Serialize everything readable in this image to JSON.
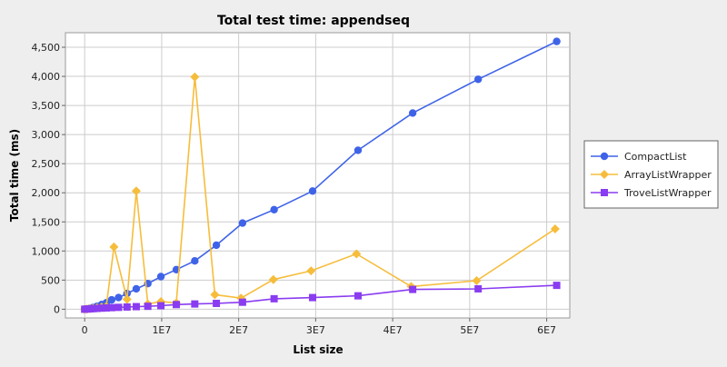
{
  "chart_data": {
    "type": "line",
    "title": "Total test time: appendseq",
    "xlabel": "List size",
    "ylabel": "Total time (ms)",
    "xlim": [
      -2500000,
      63000000
    ],
    "ylim": [
      -150,
      4750
    ],
    "x_ticks": [
      0,
      10000000,
      20000000,
      30000000,
      40000000,
      50000000,
      60000000
    ],
    "x_tick_labels": [
      "0",
      "1E7",
      "2E7",
      "3E7",
      "4E7",
      "5E7",
      "6E7"
    ],
    "y_ticks": [
      0,
      500,
      1000,
      1500,
      2000,
      2500,
      3000,
      3500,
      4000,
      4500
    ],
    "y_tick_labels": [
      "0",
      "500",
      "1,000",
      "1,500",
      "2,000",
      "2,500",
      "3,000",
      "3,500",
      "4,000",
      "4,500"
    ],
    "grid": true,
    "legend_position": "right",
    "series": [
      {
        "name": "CompactList",
        "color": "#3f63e8",
        "marker": "circle",
        "points": [
          [
            0,
            0
          ],
          [
            300000,
            5
          ],
          [
            700000,
            15
          ],
          [
            1100000,
            30
          ],
          [
            1600000,
            50
          ],
          [
            2200000,
            80
          ],
          [
            2800000,
            110
          ],
          [
            3500000,
            160
          ],
          [
            4400000,
            200
          ],
          [
            5500000,
            270
          ],
          [
            6700000,
            350
          ],
          [
            8200000,
            440
          ],
          [
            9900000,
            560
          ],
          [
            11900000,
            680
          ],
          [
            14300000,
            830
          ],
          [
            17100000,
            1100
          ],
          [
            20500000,
            1480
          ],
          [
            24600000,
            1710
          ],
          [
            29600000,
            2030
          ],
          [
            35500000,
            2730
          ],
          [
            42600000,
            3370
          ],
          [
            51100000,
            3950
          ],
          [
            61300000,
            4600
          ]
        ]
      },
      {
        "name": "ArrayListWrapper",
        "color": "#f6bd3c",
        "marker": "diamond",
        "points": [
          [
            0,
            0
          ],
          [
            300000,
            5
          ],
          [
            700000,
            10
          ],
          [
            1100000,
            15
          ],
          [
            1600000,
            25
          ],
          [
            2200000,
            35
          ],
          [
            2800000,
            45
          ],
          [
            3800000,
            1070
          ],
          [
            5500000,
            170
          ],
          [
            6700000,
            2030
          ],
          [
            8200000,
            90
          ],
          [
            9900000,
            130
          ],
          [
            11900000,
            110
          ],
          [
            14300000,
            3990
          ],
          [
            16900000,
            250
          ],
          [
            20300000,
            190
          ],
          [
            24500000,
            510
          ],
          [
            29400000,
            660
          ],
          [
            35300000,
            950
          ],
          [
            42400000,
            390
          ],
          [
            50900000,
            490
          ],
          [
            61100000,
            1380
          ]
        ]
      },
      {
        "name": "TroveListWrapper",
        "color": "#8a3cf0",
        "marker": "square",
        "points": [
          [
            0,
            0
          ],
          [
            300000,
            3
          ],
          [
            700000,
            6
          ],
          [
            1100000,
            10
          ],
          [
            1600000,
            14
          ],
          [
            2200000,
            18
          ],
          [
            2800000,
            22
          ],
          [
            3500000,
            27
          ],
          [
            4400000,
            32
          ],
          [
            5500000,
            38
          ],
          [
            6700000,
            44
          ],
          [
            8200000,
            50
          ],
          [
            9900000,
            60
          ],
          [
            11900000,
            80
          ],
          [
            14300000,
            90
          ],
          [
            17100000,
            100
          ],
          [
            20500000,
            120
          ],
          [
            24600000,
            180
          ],
          [
            29600000,
            200
          ],
          [
            35500000,
            230
          ],
          [
            42600000,
            340
          ],
          [
            51100000,
            350
          ],
          [
            61300000,
            410
          ]
        ]
      }
    ]
  }
}
